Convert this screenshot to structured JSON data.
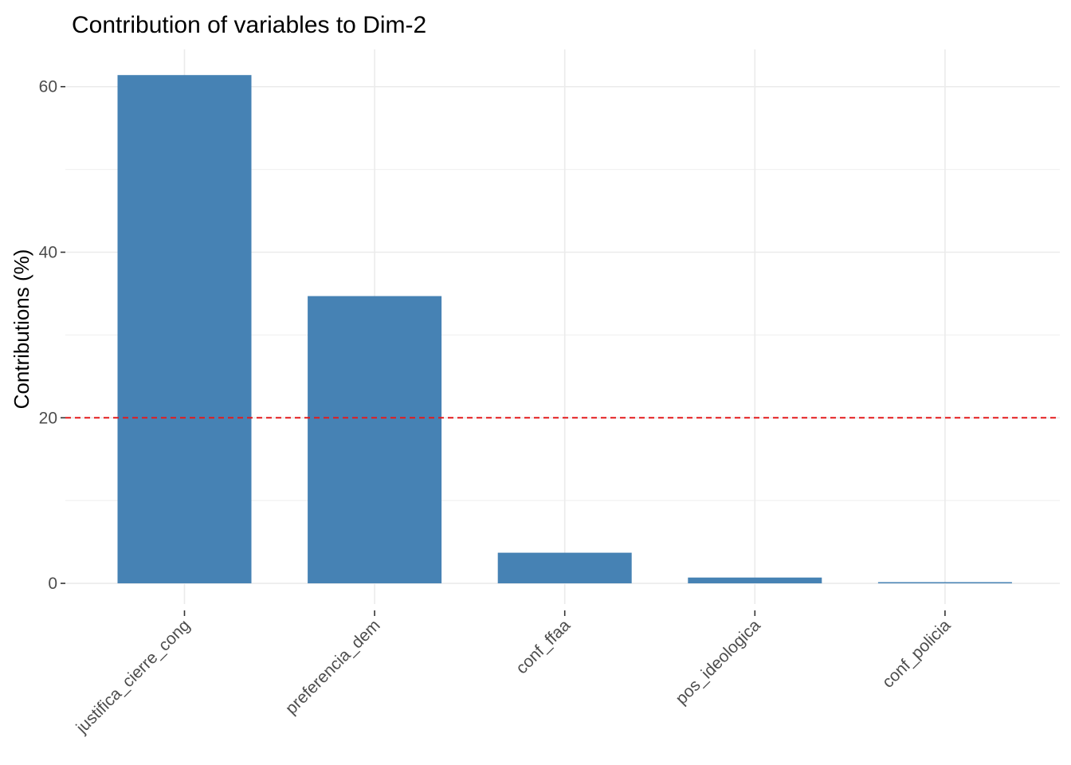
{
  "chart_data": {
    "type": "bar",
    "title": "Contribution of variables to Dim-2",
    "xlabel": "",
    "ylabel": "Contributions (%)",
    "categories": [
      "justifica_cierre_cong",
      "preferencia_dem",
      "conf_ffaa",
      "pos_ideologica",
      "conf_policia"
    ],
    "values": [
      61.4,
      34.7,
      3.7,
      0.7,
      0.1
    ],
    "ylim": [
      -2.5,
      64.5
    ],
    "yticks": [
      0,
      20,
      40,
      60
    ],
    "yticks_minor": [
      10,
      30,
      50
    ],
    "reference_line": {
      "value": 20,
      "style": "dashed",
      "color": "#e41a1c"
    },
    "bar_color": "#4682b4",
    "grid": true,
    "legend": "none"
  }
}
